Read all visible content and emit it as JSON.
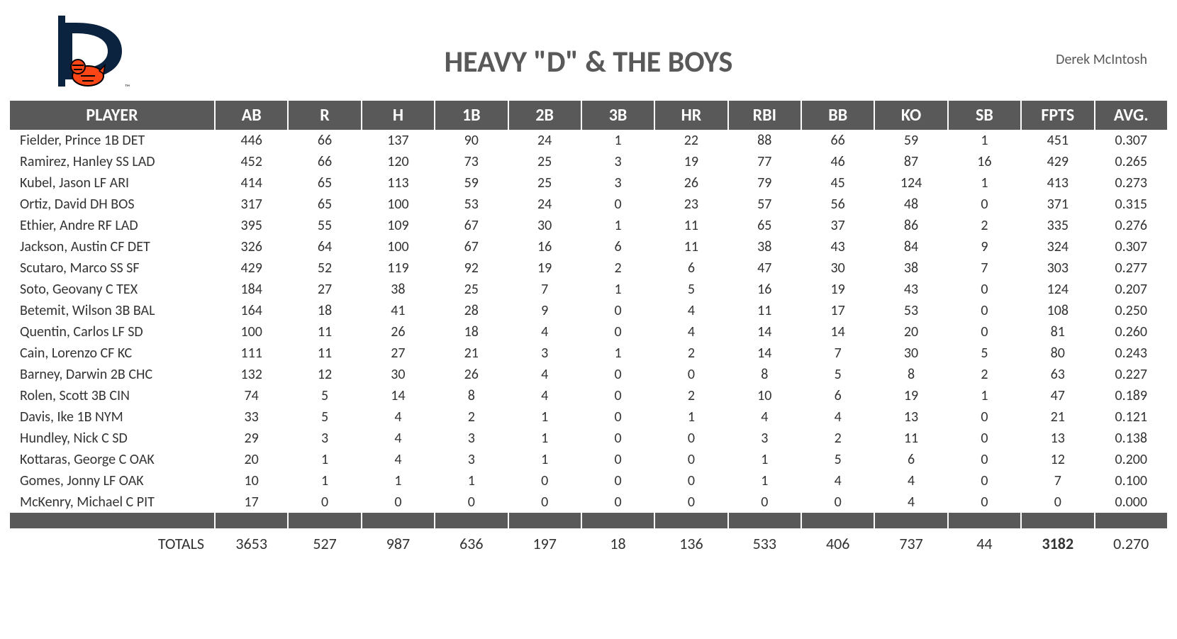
{
  "header": {
    "team_title": "HEAVY \"D\" & THE BOYS",
    "owner": "Derek McIntosh"
  },
  "logo": {
    "letter_color": "#0c2340",
    "tiger_orange": "#fa4616",
    "tiger_white": "#ffffff",
    "tiger_black": "#000000"
  },
  "table": {
    "columns": [
      "PLAYER",
      "AB",
      "R",
      "H",
      "1B",
      "2B",
      "3B",
      "HR",
      "RBI",
      "BB",
      "KO",
      "SB",
      "FPTS",
      "AVG."
    ],
    "rows": [
      {
        "player": "Fielder, Prince 1B DET",
        "AB": "446",
        "R": "66",
        "H": "137",
        "1B": "90",
        "2B": "24",
        "3B": "1",
        "HR": "22",
        "RBI": "88",
        "BB": "66",
        "KO": "59",
        "SB": "1",
        "FPTS": "451",
        "AVG": "0.307"
      },
      {
        "player": "Ramirez, Hanley SS LAD",
        "AB": "452",
        "R": "66",
        "H": "120",
        "1B": "73",
        "2B": "25",
        "3B": "3",
        "HR": "19",
        "RBI": "77",
        "BB": "46",
        "KO": "87",
        "SB": "16",
        "FPTS": "429",
        "AVG": "0.265"
      },
      {
        "player": "Kubel, Jason LF ARI",
        "AB": "414",
        "R": "65",
        "H": "113",
        "1B": "59",
        "2B": "25",
        "3B": "3",
        "HR": "26",
        "RBI": "79",
        "BB": "45",
        "KO": "124",
        "SB": "1",
        "FPTS": "413",
        "AVG": "0.273"
      },
      {
        "player": "Ortiz, David DH BOS",
        "AB": "317",
        "R": "65",
        "H": "100",
        "1B": "53",
        "2B": "24",
        "3B": "0",
        "HR": "23",
        "RBI": "57",
        "BB": "56",
        "KO": "48",
        "SB": "0",
        "FPTS": "371",
        "AVG": "0.315"
      },
      {
        "player": "Ethier, Andre RF LAD",
        "AB": "395",
        "R": "55",
        "H": "109",
        "1B": "67",
        "2B": "30",
        "3B": "1",
        "HR": "11",
        "RBI": "65",
        "BB": "37",
        "KO": "86",
        "SB": "2",
        "FPTS": "335",
        "AVG": "0.276"
      },
      {
        "player": "Jackson, Austin CF DET",
        "AB": "326",
        "R": "64",
        "H": "100",
        "1B": "67",
        "2B": "16",
        "3B": "6",
        "HR": "11",
        "RBI": "38",
        "BB": "43",
        "KO": "84",
        "SB": "9",
        "FPTS": "324",
        "AVG": "0.307"
      },
      {
        "player": "Scutaro, Marco SS SF",
        "AB": "429",
        "R": "52",
        "H": "119",
        "1B": "92",
        "2B": "19",
        "3B": "2",
        "HR": "6",
        "RBI": "47",
        "BB": "30",
        "KO": "38",
        "SB": "7",
        "FPTS": "303",
        "AVG": "0.277"
      },
      {
        "player": "Soto, Geovany C TEX",
        "AB": "184",
        "R": "27",
        "H": "38",
        "1B": "25",
        "2B": "7",
        "3B": "1",
        "HR": "5",
        "RBI": "16",
        "BB": "19",
        "KO": "43",
        "SB": "0",
        "FPTS": "124",
        "AVG": "0.207"
      },
      {
        "player": "Betemit, Wilson 3B BAL",
        "AB": "164",
        "R": "18",
        "H": "41",
        "1B": "28",
        "2B": "9",
        "3B": "0",
        "HR": "4",
        "RBI": "11",
        "BB": "17",
        "KO": "53",
        "SB": "0",
        "FPTS": "108",
        "AVG": "0.250"
      },
      {
        "player": "Quentin, Carlos LF SD",
        "AB": "100",
        "R": "11",
        "H": "26",
        "1B": "18",
        "2B": "4",
        "3B": "0",
        "HR": "4",
        "RBI": "14",
        "BB": "14",
        "KO": "20",
        "SB": "0",
        "FPTS": "81",
        "AVG": "0.260"
      },
      {
        "player": "Cain, Lorenzo CF KC",
        "AB": "111",
        "R": "11",
        "H": "27",
        "1B": "21",
        "2B": "3",
        "3B": "1",
        "HR": "2",
        "RBI": "14",
        "BB": "7",
        "KO": "30",
        "SB": "5",
        "FPTS": "80",
        "AVG": "0.243"
      },
      {
        "player": "Barney, Darwin 2B CHC",
        "AB": "132",
        "R": "12",
        "H": "30",
        "1B": "26",
        "2B": "4",
        "3B": "0",
        "HR": "0",
        "RBI": "8",
        "BB": "5",
        "KO": "8",
        "SB": "2",
        "FPTS": "63",
        "AVG": "0.227"
      },
      {
        "player": "Rolen, Scott 3B CIN",
        "AB": "74",
        "R": "5",
        "H": "14",
        "1B": "8",
        "2B": "4",
        "3B": "0",
        "HR": "2",
        "RBI": "10",
        "BB": "6",
        "KO": "19",
        "SB": "1",
        "FPTS": "47",
        "AVG": "0.189"
      },
      {
        "player": "Davis, Ike 1B NYM",
        "AB": "33",
        "R": "5",
        "H": "4",
        "1B": "2",
        "2B": "1",
        "3B": "0",
        "HR": "1",
        "RBI": "4",
        "BB": "4",
        "KO": "13",
        "SB": "0",
        "FPTS": "21",
        "AVG": "0.121"
      },
      {
        "player": "Hundley, Nick C SD",
        "AB": "29",
        "R": "3",
        "H": "4",
        "1B": "3",
        "2B": "1",
        "3B": "0",
        "HR": "0",
        "RBI": "3",
        "BB": "2",
        "KO": "11",
        "SB": "0",
        "FPTS": "13",
        "AVG": "0.138"
      },
      {
        "player": "Kottaras, George C OAK",
        "AB": "20",
        "R": "1",
        "H": "4",
        "1B": "3",
        "2B": "1",
        "3B": "0",
        "HR": "0",
        "RBI": "1",
        "BB": "5",
        "KO": "6",
        "SB": "0",
        "FPTS": "12",
        "AVG": "0.200"
      },
      {
        "player": "Gomes, Jonny LF OAK",
        "AB": "10",
        "R": "1",
        "H": "1",
        "1B": "1",
        "2B": "0",
        "3B": "0",
        "HR": "0",
        "RBI": "1",
        "BB": "4",
        "KO": "4",
        "SB": "0",
        "FPTS": "7",
        "AVG": "0.100"
      },
      {
        "player": "McKenry, Michael C PIT",
        "AB": "17",
        "R": "0",
        "H": "0",
        "1B": "0",
        "2B": "0",
        "3B": "0",
        "HR": "0",
        "RBI": "0",
        "BB": "0",
        "KO": "4",
        "SB": "0",
        "FPTS": "0",
        "AVG": "0.000"
      }
    ],
    "totals": {
      "label": "TOTALS",
      "AB": "3653",
      "R": "527",
      "H": "987",
      "1B": "636",
      "2B": "197",
      "3B": "18",
      "HR": "136",
      "RBI": "533",
      "BB": "406",
      "KO": "737",
      "SB": "44",
      "FPTS": "3182",
      "AVG": "0.270"
    }
  },
  "style": {
    "header_bg": "#595959",
    "header_text": "#ffffff",
    "body_text": "#333333",
    "title_text": "#595959",
    "background": "#ffffff",
    "title_fontsize": 42,
    "header_fontsize": 24,
    "cell_fontsize": 20,
    "totals_fontsize": 22,
    "owner_fontsize": 20
  }
}
